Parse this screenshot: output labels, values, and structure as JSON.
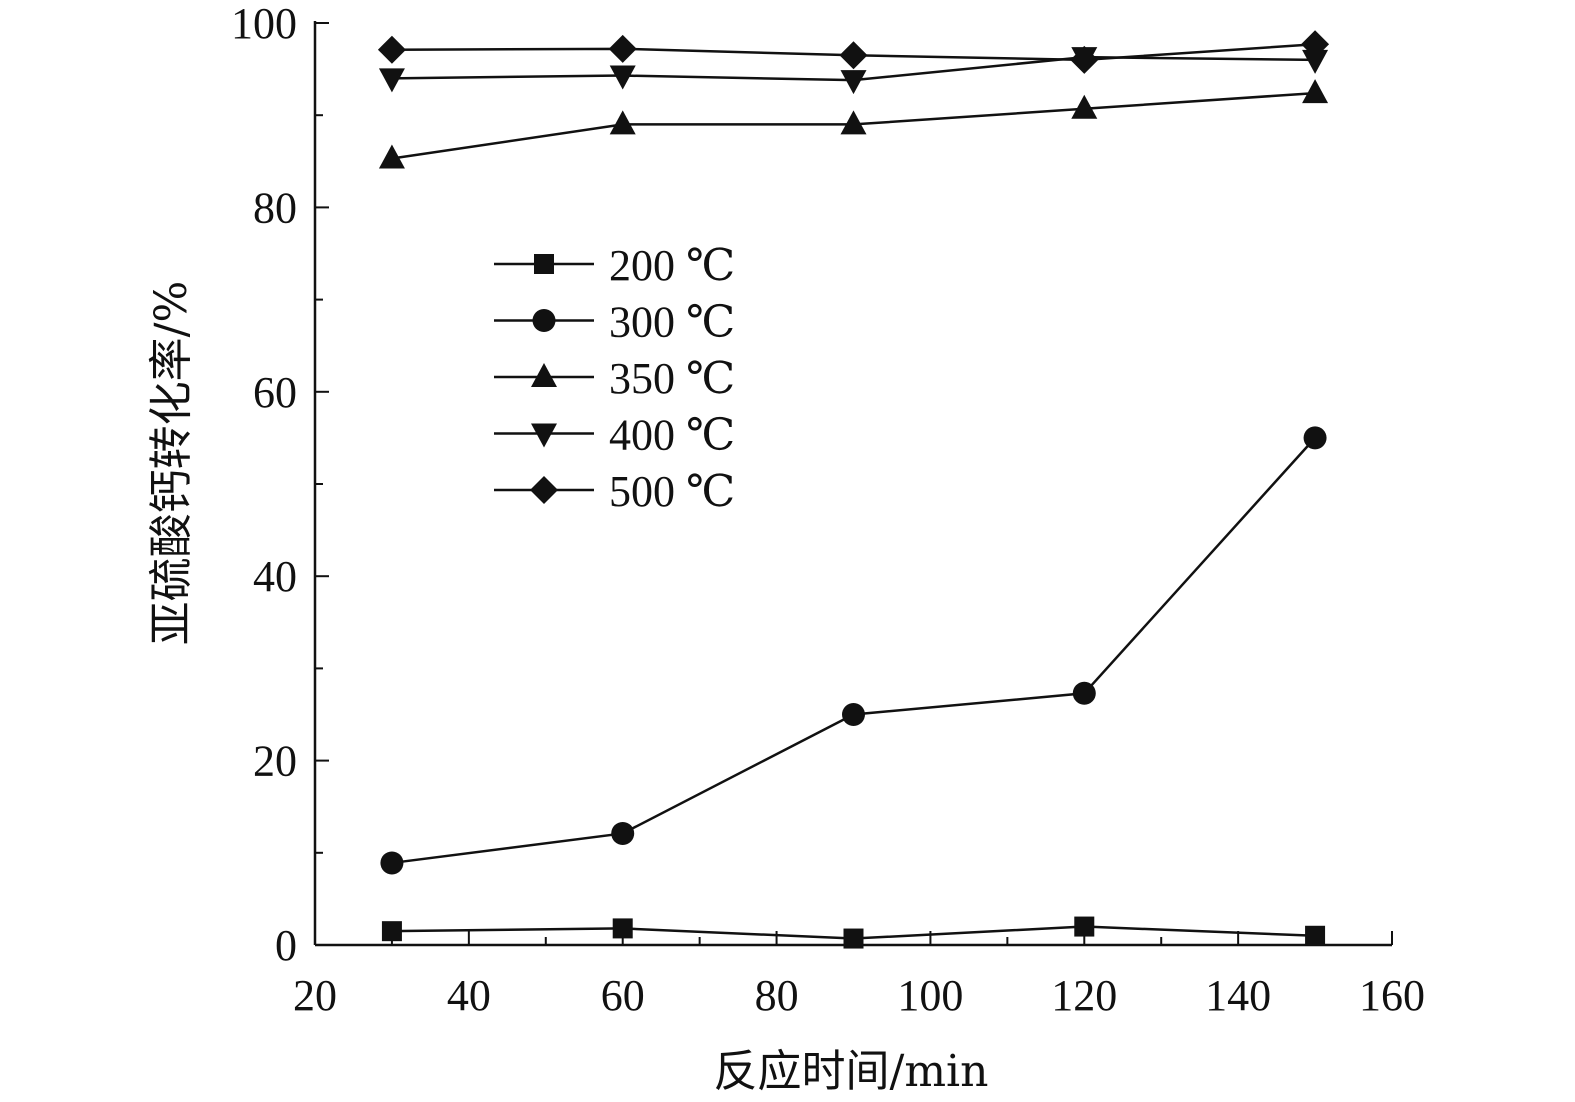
{
  "chart_data": {
    "type": "line",
    "xlabel": "反应时间/min",
    "ylabel": "亚硫酸钙转化率/%",
    "xlim": [
      20,
      160
    ],
    "ylim": [
      0,
      100
    ],
    "x_ticks": [
      20,
      40,
      60,
      80,
      100,
      120,
      140,
      160
    ],
    "y_ticks": [
      0,
      20,
      40,
      60,
      80,
      100
    ],
    "x_minor_step": 10,
    "y_minor_step": 10,
    "legend_position": "center-left",
    "x": [
      30,
      60,
      90,
      120,
      150
    ],
    "series": [
      {
        "name": "200 ℃",
        "marker": "square",
        "values": [
          1.5,
          1.8,
          0.7,
          2.0,
          1.0
        ]
      },
      {
        "name": "300 ℃",
        "marker": "circle",
        "values": [
          8.9,
          12.1,
          25.0,
          27.3,
          55.0
        ]
      },
      {
        "name": "350 ℃",
        "marker": "triangle-up",
        "values": [
          85.3,
          89.0,
          89.0,
          90.7,
          92.4
        ]
      },
      {
        "name": "400 ℃",
        "marker": "triangle-down",
        "values": [
          94.0,
          94.3,
          93.8,
          96.3,
          96.0
        ]
      },
      {
        "name": "500 ℃",
        "marker": "diamond",
        "values": [
          97.1,
          97.2,
          96.5,
          96.0,
          97.7
        ]
      }
    ],
    "colors": {
      "line": "#111111",
      "marker": "#111111",
      "axis": "#111111"
    }
  }
}
